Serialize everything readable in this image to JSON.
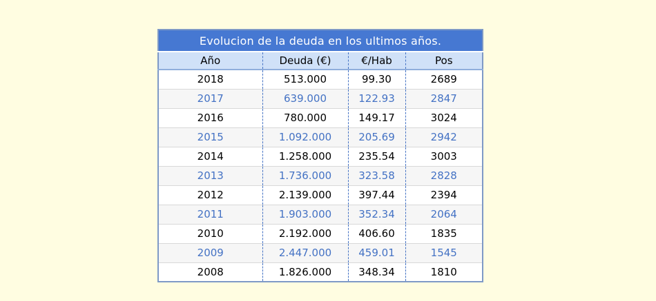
{
  "colors": {
    "page_bg": "#FFFDE1",
    "title_bg": "#4678D2",
    "title_text": "#FFFFFF",
    "header_bg": "#D0E1F8",
    "header_text": "#000000",
    "row_bg": "#FFFFFF",
    "row_text": "#000000",
    "alt_row_bg": "#F6F6F6",
    "alt_row_text": "#4472C4",
    "divider_dashed": "#4472C4",
    "row_separator": "#D8D8D8",
    "outer_border": "#7E99C6",
    "header_border": "#8FAEDC"
  },
  "table": {
    "title": "Evolucion de la deuda en los ultimos años.",
    "columns": [
      "Año",
      "Deuda (€)",
      "€/Hab",
      "Pos"
    ],
    "rows": [
      {
        "cells": [
          "2018",
          "513.000",
          "99.30",
          "2689"
        ],
        "highlighted": false
      },
      {
        "cells": [
          "2017",
          "639.000",
          "122.93",
          "2847"
        ],
        "highlighted": true
      },
      {
        "cells": [
          "2016",
          "780.000",
          "149.17",
          "3024"
        ],
        "highlighted": false
      },
      {
        "cells": [
          "2015",
          "1.092.000",
          "205.69",
          "2942"
        ],
        "highlighted": true
      },
      {
        "cells": [
          "2014",
          "1.258.000",
          "235.54",
          "3003"
        ],
        "highlighted": false
      },
      {
        "cells": [
          "2013",
          "1.736.000",
          "323.58",
          "2828"
        ],
        "highlighted": true
      },
      {
        "cells": [
          "2012",
          "2.139.000",
          "397.44",
          "2394"
        ],
        "highlighted": false
      },
      {
        "cells": [
          "2011",
          "1.903.000",
          "352.34",
          "2064"
        ],
        "highlighted": true
      },
      {
        "cells": [
          "2010",
          "2.192.000",
          "406.60",
          "1835"
        ],
        "highlighted": false
      },
      {
        "cells": [
          "2009",
          "2.447.000",
          "459.01",
          "1545"
        ],
        "highlighted": true
      },
      {
        "cells": [
          "2008",
          "1.826.000",
          "348.34",
          "1810"
        ],
        "highlighted": false
      }
    ]
  }
}
